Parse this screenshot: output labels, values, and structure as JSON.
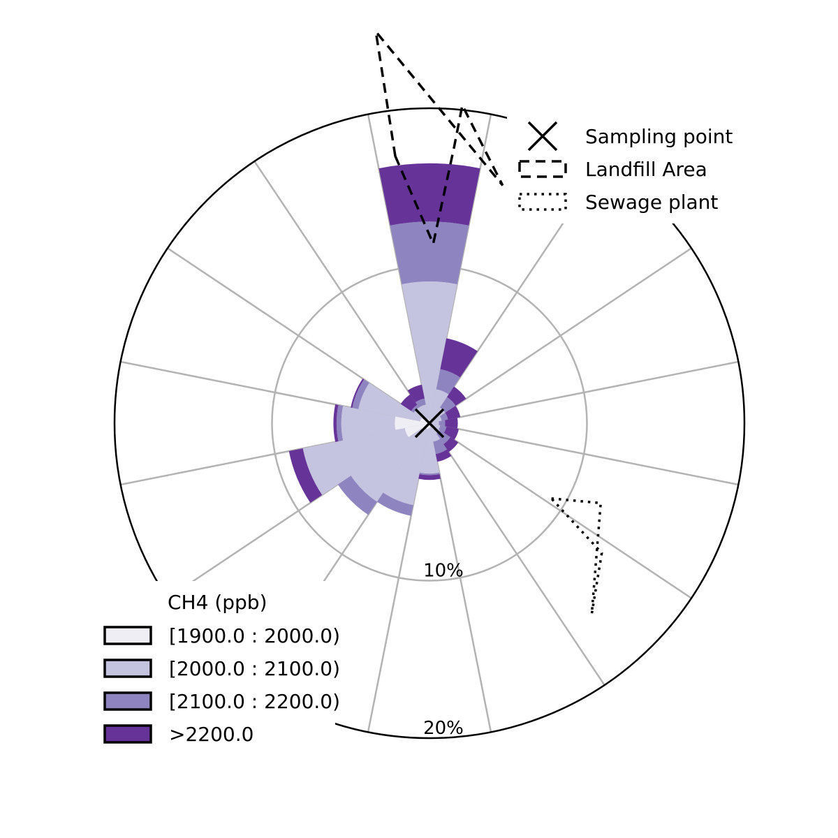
{
  "chart_data": {
    "type": "windrose",
    "title": "",
    "r_ticks": [
      {
        "value": 10,
        "label": "10%"
      },
      {
        "value": 20,
        "label": "20%"
      }
    ],
    "r_max": 20,
    "directions": 16,
    "direction_start": "N",
    "direction_order": "clockwise",
    "sector_width_deg": 22.5,
    "bins": [
      {
        "name": "[1900.0 : 2000.0)",
        "color": "#efeef5"
      },
      {
        "name": "[2000.0 : 2100.0)",
        "color": "#c4c4e0"
      },
      {
        "name": "[2100.0 : 2200.0)",
        "color": "#8e84c0"
      },
      {
        "name": ">2200.0",
        "color": "#663399"
      }
    ],
    "sectors": [
      {
        "dir": "N",
        "stacked": [
          0.2,
          9.0,
          12.8,
          16.5
        ]
      },
      {
        "dir": "NNE",
        "stacked": [
          0.2,
          2.2,
          3.5,
          5.5
        ]
      },
      {
        "dir": "NE",
        "stacked": [
          0.2,
          1.2,
          2.0,
          2.8
        ]
      },
      {
        "dir": "ENE",
        "stacked": [
          0.2,
          0.8,
          1.2,
          2.0
        ]
      },
      {
        "dir": "E",
        "stacked": [
          0.1,
          0.6,
          1.0,
          1.8
        ]
      },
      {
        "dir": "ESE",
        "stacked": [
          0.1,
          0.7,
          1.1,
          1.9
        ]
      },
      {
        "dir": "SE",
        "stacked": [
          0.1,
          0.8,
          1.6,
          2.2
        ]
      },
      {
        "dir": "SSE",
        "stacked": [
          0.1,
          1.2,
          2.0,
          2.5
        ]
      },
      {
        "dir": "S",
        "stacked": [
          0.3,
          3.2,
          3.3,
          3.6
        ]
      },
      {
        "dir": "SSW",
        "stacked": [
          0.4,
          5.3,
          6.0,
          6.0
        ]
      },
      {
        "dir": "SW",
        "stacked": [
          0.6,
          6.0,
          7.0,
          7.0
        ]
      },
      {
        "dir": "WSW",
        "stacked": [
          1.6,
          8.2,
          8.2,
          9.1
        ]
      },
      {
        "dir": "W",
        "stacked": [
          2.2,
          5.6,
          5.9,
          6.1
        ]
      },
      {
        "dir": "WNW",
        "stacked": [
          0.6,
          4.6,
          5.0,
          5.1
        ]
      },
      {
        "dir": "NW",
        "stacked": [
          0.3,
          1.2,
          1.4,
          2.2
        ]
      },
      {
        "dir": "NNW",
        "stacked": [
          0.3,
          1.2,
          1.6,
          2.5
        ]
      }
    ],
    "landfill_polygon": [
      [
        17.1,
        -7.3
      ],
      [
        11.4,
        1.2
      ],
      [
        17.6,
        5.1
      ],
      [
        20.3,
        5.9
      ],
      [
        15.8,
        17.1
      ],
      [
        25.1,
        -7.8
      ]
    ],
    "sewage_polygon": [
      [
        9.1,
        121.7
      ],
      [
        12.0,
        115.0
      ],
      [
        15.9,
        139.6
      ],
      [
        13.7,
        127.0
      ]
    ],
    "legend_markers": {
      "title": "",
      "items": [
        {
          "label": "Sampling point",
          "marker": "x-icon"
        },
        {
          "label": "Landfill Area",
          "marker": "dashed-rect"
        },
        {
          "label": "Sewage plant",
          "marker": "dotted-rect"
        }
      ],
      "placement": "top-right"
    },
    "legend_bins": {
      "title": "CH4 (ppb)",
      "placement": "bottom-left"
    },
    "grid": true
  }
}
